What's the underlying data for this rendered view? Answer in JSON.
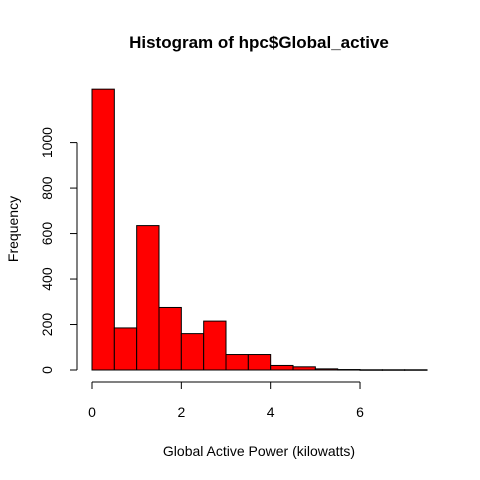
{
  "chart_data": {
    "type": "bar",
    "title": "Histogram of hpc$Global_active",
    "xlabel": "Global Active Power (kilowatts)",
    "ylabel": "Frequency",
    "bin_width": 0.5,
    "bins": [
      {
        "start": 0.0,
        "end": 0.5,
        "count": 1235
      },
      {
        "start": 0.5,
        "end": 1.0,
        "count": 185
      },
      {
        "start": 1.0,
        "end": 1.5,
        "count": 635
      },
      {
        "start": 1.5,
        "end": 2.0,
        "count": 275
      },
      {
        "start": 2.0,
        "end": 2.5,
        "count": 160
      },
      {
        "start": 2.5,
        "end": 3.0,
        "count": 215
      },
      {
        "start": 3.0,
        "end": 3.5,
        "count": 68
      },
      {
        "start": 3.5,
        "end": 4.0,
        "count": 68
      },
      {
        "start": 4.0,
        "end": 4.5,
        "count": 20
      },
      {
        "start": 4.5,
        "end": 5.0,
        "count": 14
      },
      {
        "start": 5.0,
        "end": 5.5,
        "count": 5
      },
      {
        "start": 5.5,
        "end": 6.0,
        "count": 2
      },
      {
        "start": 6.0,
        "end": 6.5,
        "count": 1
      },
      {
        "start": 6.5,
        "end": 7.0,
        "count": 1
      },
      {
        "start": 7.0,
        "end": 7.5,
        "count": 1
      }
    ],
    "xlim": [
      0,
      7.5
    ],
    "ylim": [
      0,
      1235
    ],
    "x_ticks": [
      0,
      2,
      4,
      6
    ],
    "y_ticks": [
      0,
      200,
      400,
      600,
      800,
      1000
    ],
    "bar_color": "#ff0000",
    "bar_border_color": "#000000",
    "grid": false,
    "legend": "none"
  }
}
